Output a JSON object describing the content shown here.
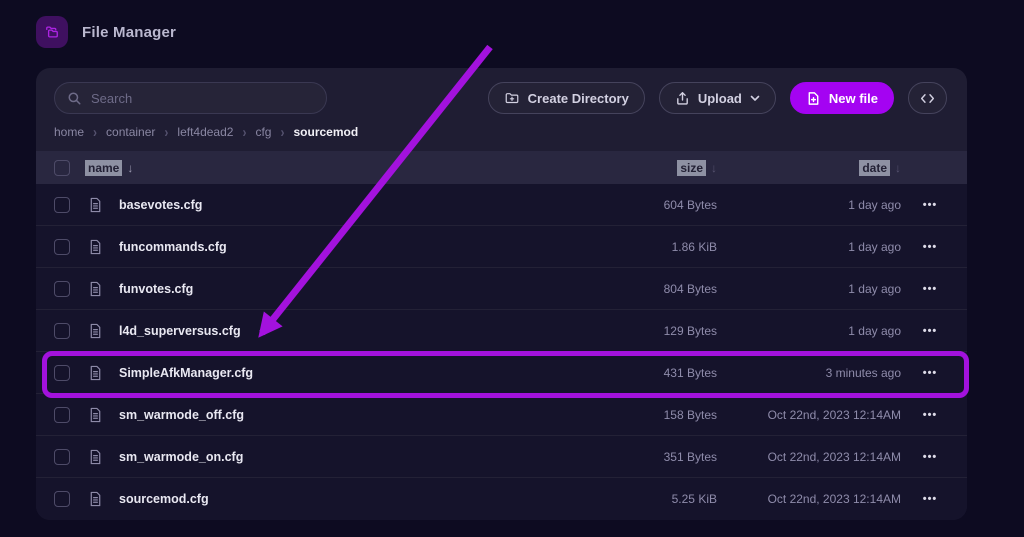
{
  "app": {
    "title": "File Manager"
  },
  "toolbar": {
    "search_placeholder": "Search",
    "create_directory_label": "Create Directory",
    "upload_label": "Upload",
    "new_file_label": "New file"
  },
  "breadcrumb": {
    "separator": "›",
    "items": [
      "home",
      "container",
      "left4dead2",
      "cfg",
      "sourcemod"
    ]
  },
  "table": {
    "columns": [
      {
        "label": "name"
      },
      {
        "label": "size"
      },
      {
        "label": "date"
      }
    ],
    "sort_arrow": "↓",
    "row_menu_icon": "•••",
    "rows": [
      {
        "name": "basevotes.cfg",
        "size": "604 Bytes",
        "date": "1 day ago",
        "highlighted": false
      },
      {
        "name": "funcommands.cfg",
        "size": "1.86 KiB",
        "date": "1 day ago",
        "highlighted": false
      },
      {
        "name": "funvotes.cfg",
        "size": "804 Bytes",
        "date": "1 day ago",
        "highlighted": false
      },
      {
        "name": "l4d_superversus.cfg",
        "size": "129 Bytes",
        "date": "1 day ago",
        "highlighted": false
      },
      {
        "name": "SimpleAfkManager.cfg",
        "size": "431 Bytes",
        "date": "3 minutes ago",
        "highlighted": true
      },
      {
        "name": "sm_warmode_off.cfg",
        "size": "158 Bytes",
        "date": "Oct 22nd, 2023 12:14AM",
        "highlighted": false
      },
      {
        "name": "sm_warmode_on.cfg",
        "size": "351 Bytes",
        "date": "Oct 22nd, 2023 12:14AM",
        "highlighted": false
      },
      {
        "name": "sourcemod.cfg",
        "size": "5.25 KiB",
        "date": "Oct 22nd, 2023 12:14AM",
        "highlighted": false
      }
    ]
  },
  "annotation": {
    "highlighted_file": "SimpleAfkManager.cfg",
    "highlight_color": "#a312dd"
  },
  "colors": {
    "page_background": "#0d0b21",
    "panel_background": "#1f1d33",
    "accent_purple": "#a403f2",
    "annotation_magenta": "#a312dd"
  },
  "icons": {
    "logo": "folder-copy-icon",
    "search": "search-icon",
    "create_directory": "folder-plus-icon",
    "upload": "upload-icon",
    "new_file": "file-plus-icon",
    "editor": "code-icon",
    "row_file": "file-icon",
    "row_menu": "ellipsis-icon"
  }
}
